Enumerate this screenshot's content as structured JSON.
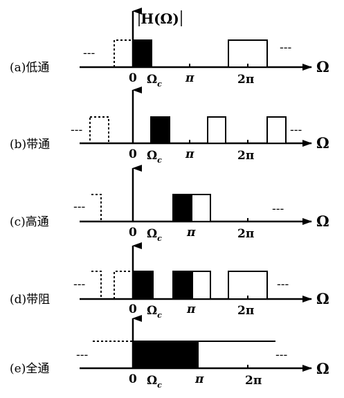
{
  "title": "H(Ω)",
  "axis_symbol": "Ω",
  "ticks": {
    "zero": "0",
    "omega_c": "Ω",
    "omega_c_sub": "c",
    "pi": "π",
    "two_pi": "2π"
  },
  "ellipsis": "---",
  "panels": [
    {
      "id": "a",
      "label": "(a)低通"
    },
    {
      "id": "b",
      "label": "(b)带通"
    },
    {
      "id": "c",
      "label": "(c)高通"
    },
    {
      "id": "d",
      "label": "(d)带阻"
    },
    {
      "id": "e",
      "label": "(e)全通"
    }
  ]
}
